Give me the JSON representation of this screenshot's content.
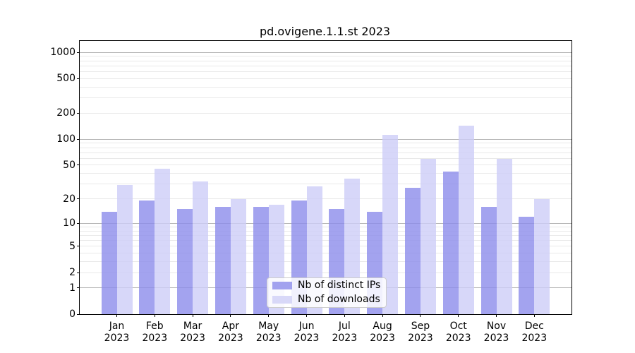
{
  "figure": {
    "title": "pd.ovigene.1.1.st 2023"
  },
  "chart_data": {
    "type": "bar",
    "title": "pd.ovigene.1.1.st 2023",
    "x_axis": {
      "categories": [
        "Jan",
        "Feb",
        "Mar",
        "Apr",
        "May",
        "Jun",
        "Jul",
        "Aug",
        "Sep",
        "Oct",
        "Nov",
        "Dec"
      ],
      "year_label": "2023"
    },
    "y_axis": {
      "scale": "log1p",
      "ticks": [
        0,
        1,
        2,
        5,
        10,
        20,
        50,
        100,
        200,
        500,
        1000
      ],
      "major_gridlines": [
        1,
        10,
        100,
        1000
      ],
      "ylim": [
        0,
        1350
      ],
      "grid": "on"
    },
    "series": [
      {
        "name": "Nb of distinct IPs",
        "color": "#a2a2ef",
        "bar_fill": "rgba(140,140,235,0.8)",
        "values": [
          14,
          19,
          15,
          16,
          16,
          19,
          15,
          14,
          27,
          42,
          16,
          12
        ]
      },
      {
        "name": "Nb of downloads",
        "color": "#d8d8f8",
        "bar_fill": "rgba(205,205,247,0.8)",
        "values": [
          29,
          45,
          32,
          20,
          17,
          28,
          35,
          113,
          59,
          144,
          59,
          20
        ]
      }
    ],
    "legend": {
      "position": "lower center",
      "entries": [
        "Nb of distinct IPs",
        "Nb of downloads"
      ]
    }
  },
  "colors": {
    "major_grid": "#b4b4b4",
    "minor_grid": "#e9e9e9",
    "spine": "#000000",
    "background": "#ffffff"
  }
}
